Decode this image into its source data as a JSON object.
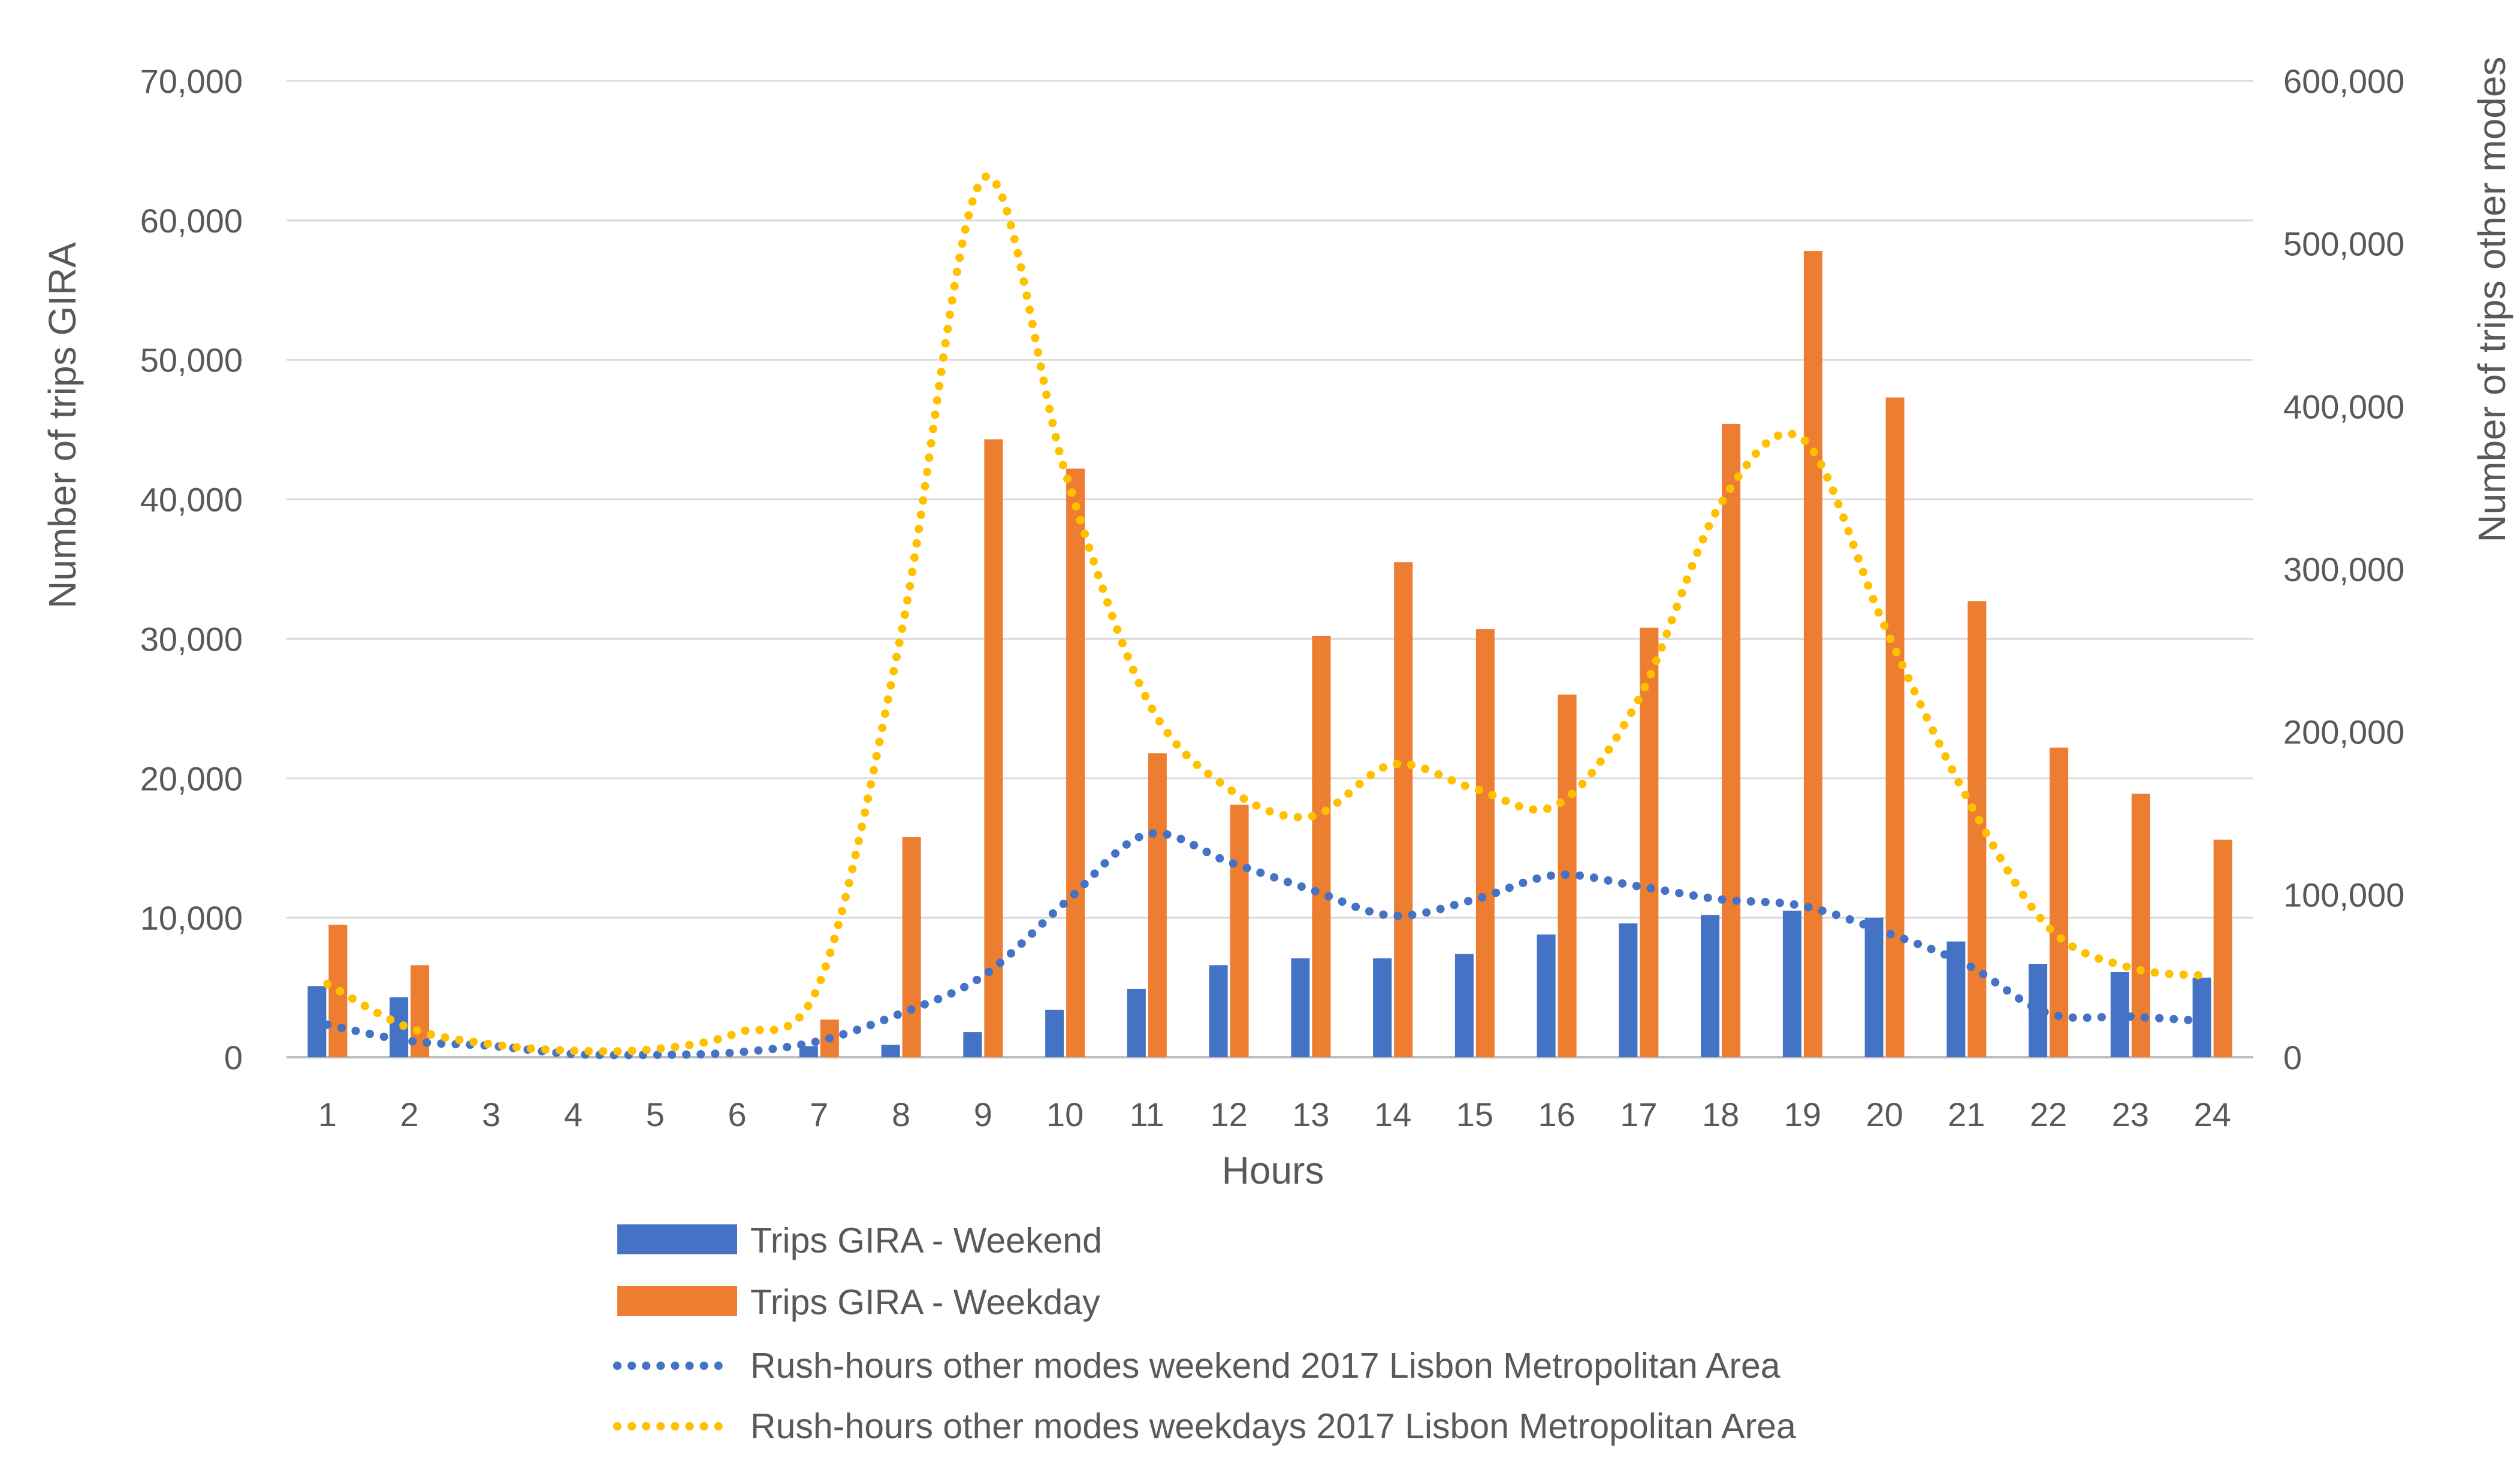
{
  "chart_data": {
    "type": "bar+line",
    "x_label": "Hours",
    "y_label_left": "Number of trips GIRA",
    "y_label_right": "Number of trips other modes",
    "y_left_range": [
      0,
      70000
    ],
    "y_right_range": [
      0,
      600000
    ],
    "y_left_ticks": [
      "0",
      "10,000",
      "20,000",
      "30,000",
      "40,000",
      "50,000",
      "60,000",
      "70,000"
    ],
    "y_right_ticks": [
      "0",
      "100,000",
      "200,000",
      "300,000",
      "400,000",
      "500,000",
      "600,000"
    ],
    "categories": [
      "1",
      "2",
      "3",
      "4",
      "5",
      "6",
      "7",
      "8",
      "9",
      "10",
      "11",
      "12",
      "13",
      "14",
      "15",
      "16",
      "17",
      "18",
      "19",
      "20",
      "21",
      "22",
      "23",
      "24"
    ],
    "grid": true,
    "legend_position": "bottom",
    "bar_series": [
      {
        "name": "Trips GIRA - Weekend",
        "color": "#4472C4",
        "axis": "left",
        "values": [
          5100,
          4300,
          0,
          0,
          0,
          0,
          800,
          900,
          1800,
          3400,
          4900,
          6600,
          7100,
          7100,
          7400,
          8800,
          9600,
          10200,
          10500,
          10000,
          8300,
          6700,
          6100,
          5700
        ]
      },
      {
        "name": "Trips GIRA - Weekday",
        "color": "#ED7D31",
        "axis": "left",
        "values": [
          9500,
          6600,
          0,
          0,
          0,
          0,
          2700,
          15800,
          44300,
          42200,
          21800,
          18100,
          30200,
          35500,
          30700,
          26000,
          30800,
          45400,
          57800,
          47300,
          32700,
          22200,
          18900,
          15600
        ]
      }
    ],
    "line_series": [
      {
        "name": "Rush-hours other modes weekend 2017 Lisbon Metropolitan Area",
        "color": "#4472C4",
        "style": "dotted",
        "axis": "right",
        "values": [
          20000,
          10000,
          7000,
          2000,
          1500,
          3000,
          10000,
          27000,
          50000,
          95000,
          137000,
          120000,
          103000,
          87000,
          97000,
          112000,
          105000,
          97000,
          93000,
          77000,
          57000,
          27000,
          25000,
          22000
        ]
      },
      {
        "name": "Rush-hours other modes weekdays 2017 Lisbon Metropolitan Area",
        "color": "#FFC000",
        "style": "dotted",
        "axis": "right",
        "values": [
          45000,
          18000,
          8000,
          4000,
          5000,
          15000,
          45000,
          260000,
          540000,
          360000,
          220000,
          165000,
          148000,
          180000,
          165000,
          155000,
          220000,
          340000,
          380000,
          265000,
          160000,
          80000,
          55000,
          50000
        ]
      }
    ]
  }
}
